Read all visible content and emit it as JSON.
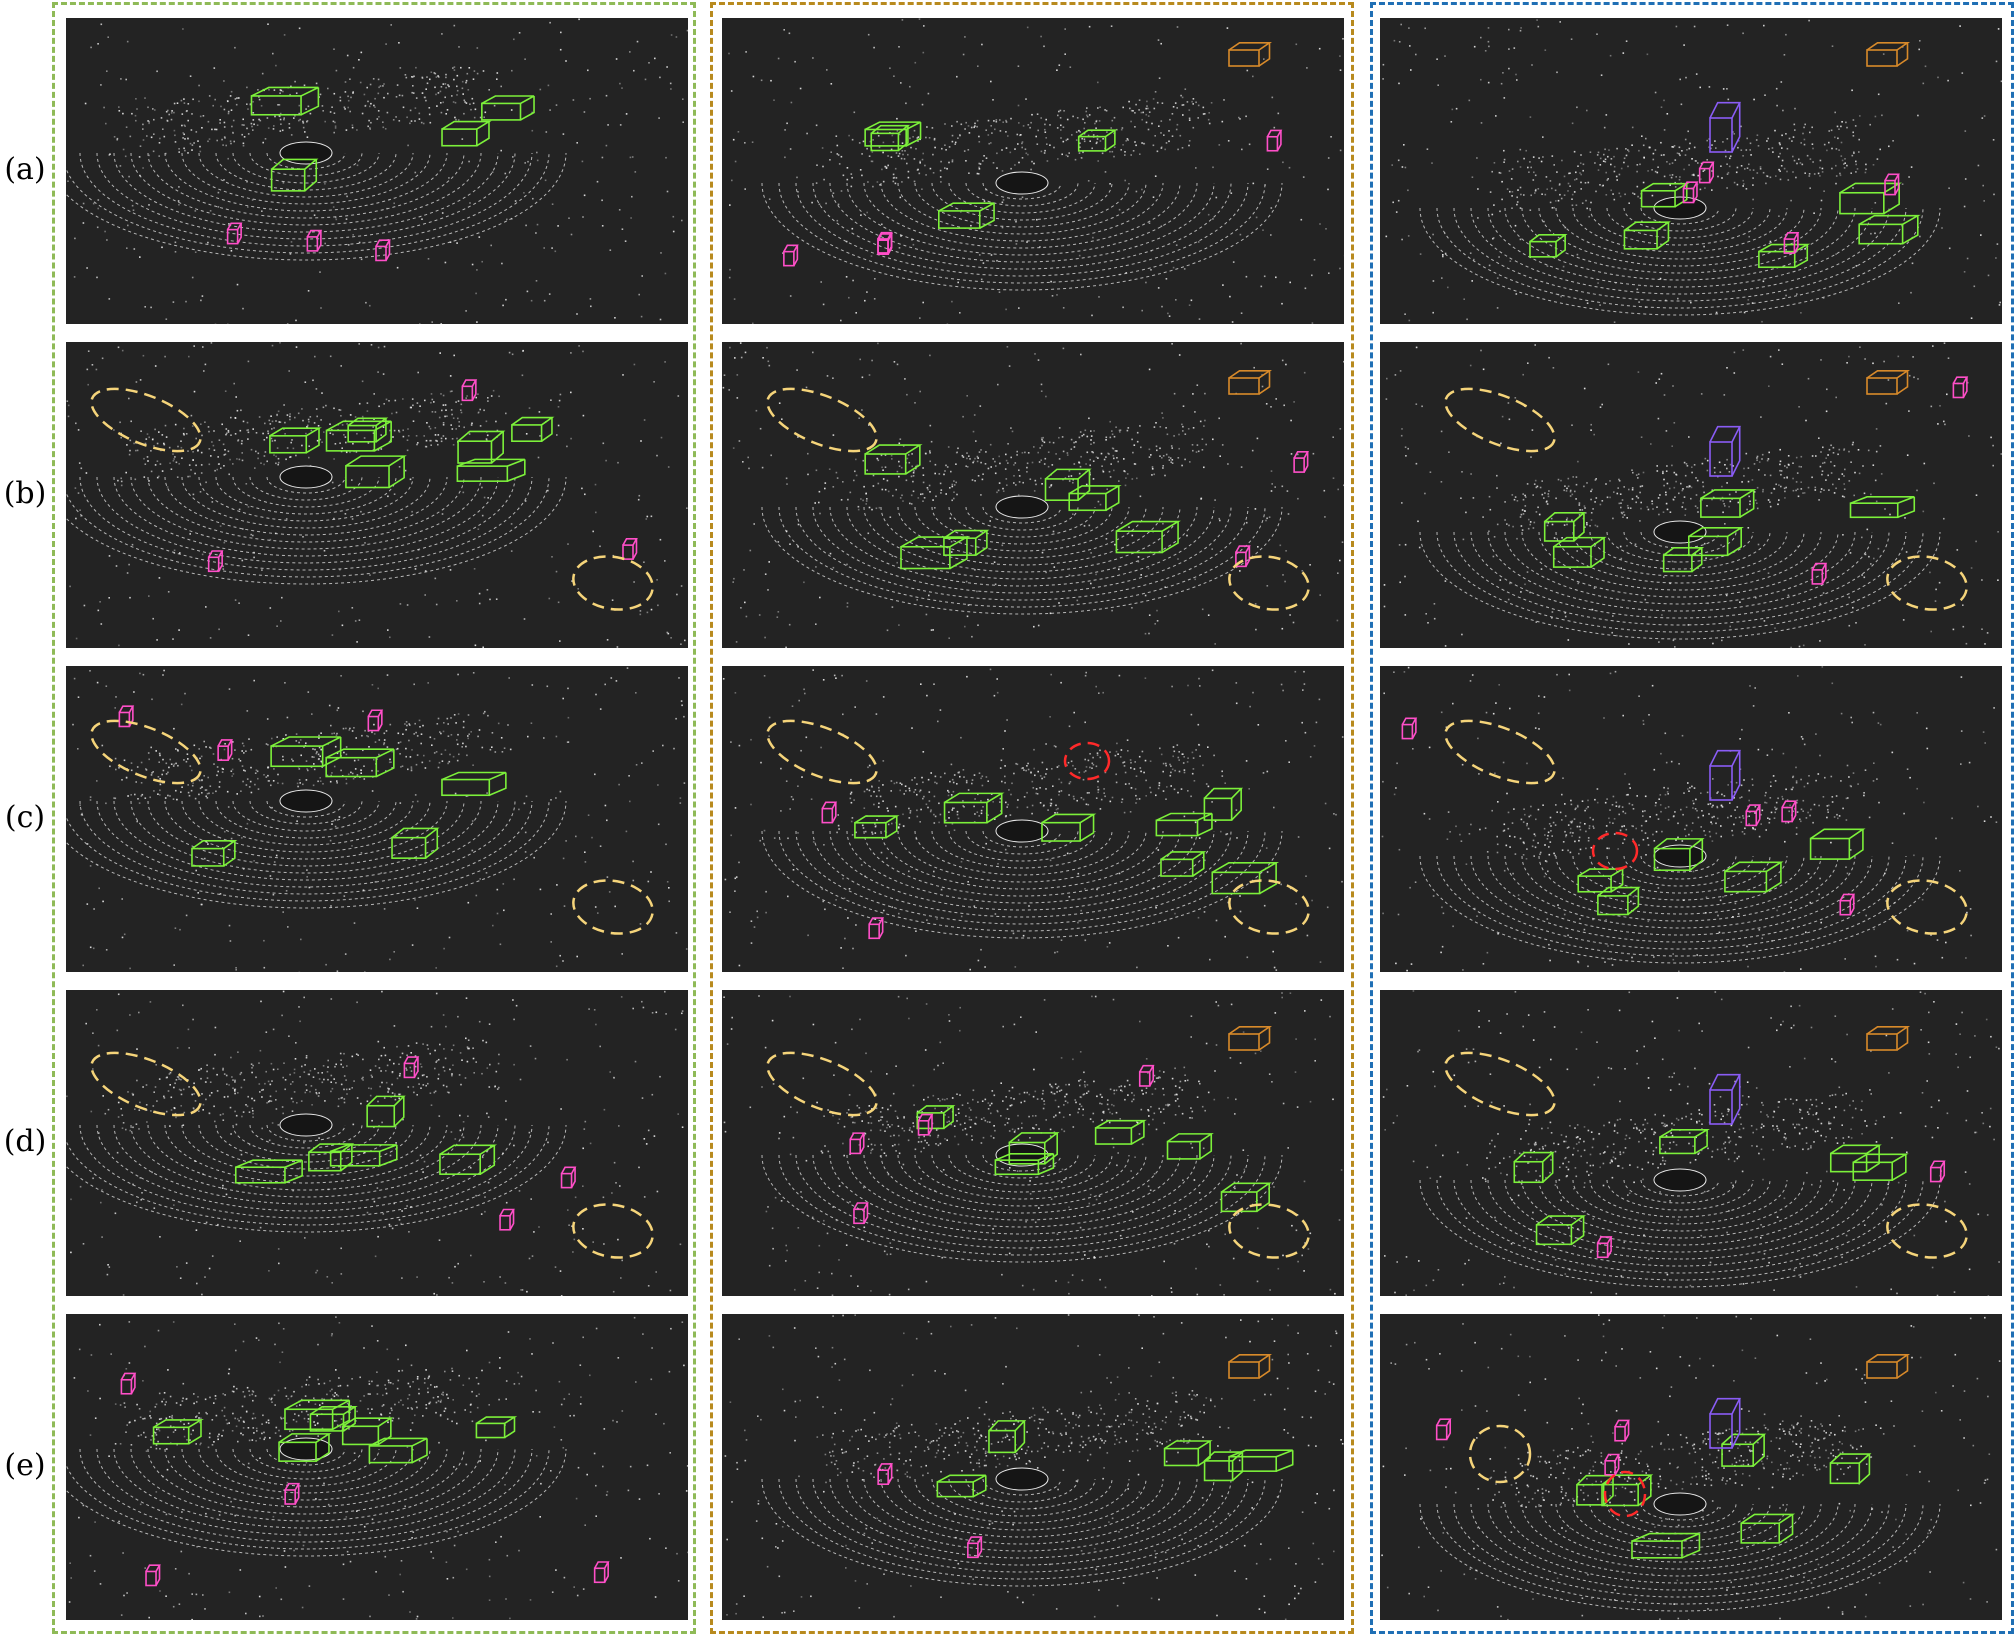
{
  "row_labels": [
    "(a)",
    "(b)",
    "(c)",
    "(d)",
    "(e)"
  ],
  "groups": [
    {
      "id": "left",
      "border_color": "#8fba57"
    },
    {
      "id": "middle",
      "border_color": "#b88a1e"
    },
    {
      "id": "right",
      "border_color": "#1f6fb5"
    }
  ],
  "colors": {
    "panel_background": "#232323",
    "point_cloud": "#e8e8e8",
    "car_box": "#7cf03a",
    "pedestrian_box": "#ff4fc8",
    "cyclist_box": "#b0ff3a",
    "van_box": "#8a5cf5",
    "truck_box": "#d88a2a",
    "highlight_ellipse": "#f5d47a",
    "error_ellipse": "#ff2a2a"
  }
}
